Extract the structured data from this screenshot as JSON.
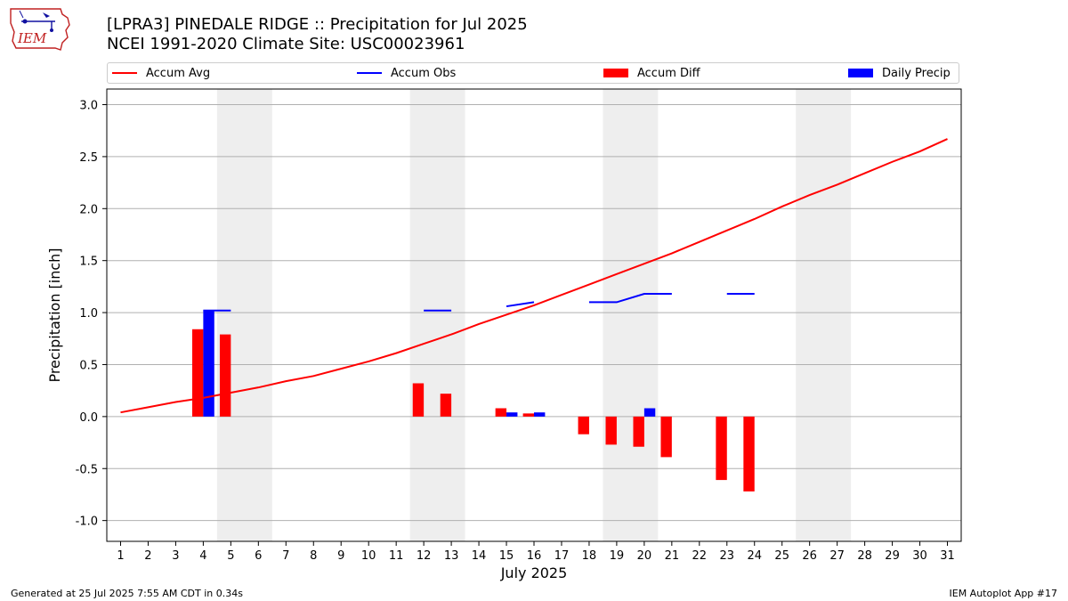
{
  "header": {
    "title_line1": "[LPRA3] PINEDALE RIDGE :: Precipitation for Jul 2025",
    "title_line2": "NCEI 1991-2020 Climate Site: USC00023961",
    "logo_text": "IEM"
  },
  "legend": {
    "accum_avg": "Accum Avg",
    "accum_obs": "Accum Obs",
    "accum_diff": "Accum Diff",
    "daily_precip": "Daily Precip"
  },
  "footer": {
    "left": "Generated at 25 Jul 2025 7:55 AM CDT in 0.34s",
    "right": "IEM Autoplot App #17"
  },
  "colors": {
    "accum_avg": "#ff0000",
    "accum_obs": "#0000ff",
    "accum_diff": "#ff0000",
    "daily_precip": "#0000ff",
    "weekend_shade": "#eeeeee",
    "grid": "#b0b0b0"
  },
  "chart_data": {
    "type": "bar",
    "xlabel": "July 2025",
    "ylabel": "Precipitation [inch]",
    "x": [
      1,
      2,
      3,
      4,
      5,
      6,
      7,
      8,
      9,
      10,
      11,
      12,
      13,
      14,
      15,
      16,
      17,
      18,
      19,
      20,
      21,
      22,
      23,
      24,
      25,
      26,
      27,
      28,
      29,
      30,
      31
    ],
    "xlim": [
      0.5,
      31.5
    ],
    "ylim": [
      -1.2,
      3.15
    ],
    "yticks": [
      -1.0,
      -0.5,
      0.0,
      0.5,
      1.0,
      1.5,
      2.0,
      2.5,
      3.0
    ],
    "grid": true,
    "legend_position": "top",
    "weekend_bands": [
      [
        4.5,
        6.5
      ],
      [
        11.5,
        13.5
      ],
      [
        18.5,
        20.5
      ],
      [
        25.5,
        27.5
      ]
    ],
    "series": [
      {
        "name": "Accum Avg",
        "type": "line",
        "x": [
          1,
          2,
          3,
          4,
          5,
          6,
          7,
          8,
          9,
          10,
          11,
          12,
          13,
          14,
          15,
          16,
          17,
          18,
          19,
          20,
          21,
          22,
          23,
          24,
          25,
          26,
          27,
          28,
          29,
          30,
          31
        ],
        "values": [
          0.04,
          0.09,
          0.14,
          0.18,
          0.23,
          0.28,
          0.34,
          0.39,
          0.46,
          0.53,
          0.61,
          0.7,
          0.79,
          0.89,
          0.98,
          1.07,
          1.17,
          1.27,
          1.37,
          1.47,
          1.57,
          1.68,
          1.79,
          1.9,
          2.02,
          2.13,
          2.23,
          2.34,
          2.45,
          2.55,
          2.67
        ]
      },
      {
        "name": "Accum Obs",
        "type": "step",
        "segments": [
          {
            "x": [
              4,
              5
            ],
            "values": [
              1.02,
              1.02
            ]
          },
          {
            "x": [
              12,
              13
            ],
            "values": [
              1.02,
              1.02
            ]
          },
          {
            "x": [
              15,
              16
            ],
            "values": [
              1.06,
              1.1
            ]
          },
          {
            "x": [
              18,
              19,
              20,
              21
            ],
            "values": [
              1.1,
              1.1,
              1.18,
              1.18
            ]
          },
          {
            "x": [
              23,
              24
            ],
            "values": [
              1.18,
              1.18
            ]
          }
        ]
      },
      {
        "name": "Accum Diff",
        "type": "bar",
        "x": [
          4,
          5,
          12,
          13,
          15,
          16,
          18,
          19,
          20,
          21,
          23,
          24
        ],
        "values": [
          0.84,
          0.79,
          0.32,
          0.22,
          0.08,
          0.03,
          -0.17,
          -0.27,
          -0.29,
          -0.39,
          -0.61,
          -0.72
        ]
      },
      {
        "name": "Daily Precip",
        "type": "bar",
        "x": [
          4,
          15,
          16,
          20
        ],
        "values": [
          1.02,
          0.04,
          0.04,
          0.08
        ]
      }
    ]
  }
}
